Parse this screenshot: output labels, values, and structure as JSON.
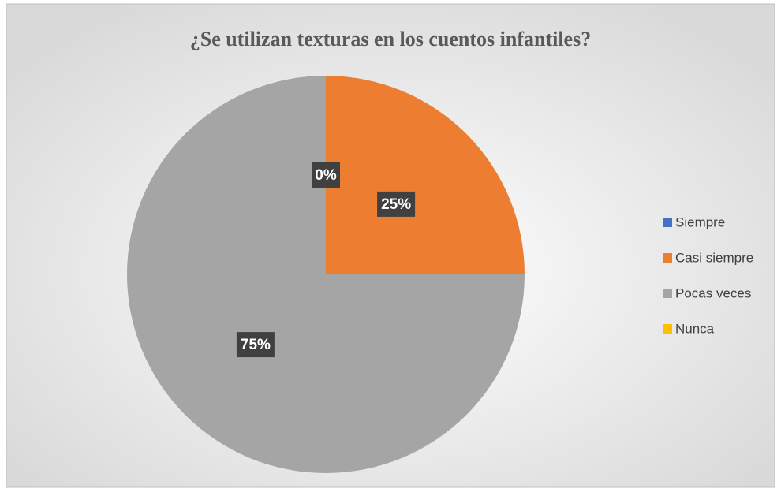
{
  "chart_data": {
    "type": "pie",
    "title": "¿Se utilizan texturas en los cuentos infantiles?",
    "categories": [
      "Siempre",
      "Casi siempre",
      "Pocas veces",
      "Nunca"
    ],
    "values": [
      0,
      25,
      75,
      0
    ],
    "value_labels": [
      "0%",
      "25%",
      "75%",
      null
    ],
    "colors": [
      "#4472c4",
      "#ed7d31",
      "#a5a5a5",
      "#ffc000"
    ],
    "legend": "right"
  }
}
